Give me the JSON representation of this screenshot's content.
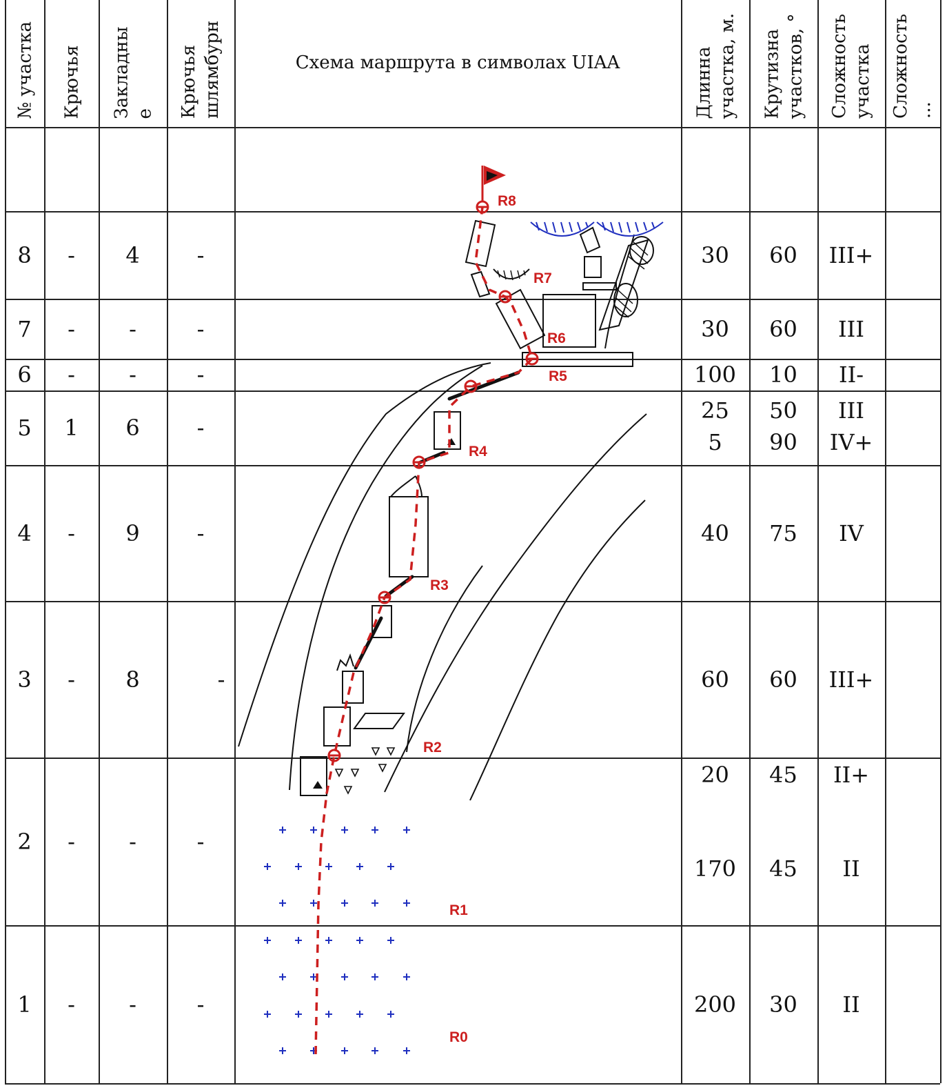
{
  "headers": {
    "section_no": "№ участка",
    "pitons": "Крючья",
    "nuts": [
      "Закладны",
      "е"
    ],
    "bolts": [
      "Крючья",
      "шлямбурн"
    ],
    "scheme": "Схема маршрута в символах UIAA",
    "length": [
      "Длинна",
      "участка, м."
    ],
    "steepness": [
      "Крутизна",
      "участков, °"
    ],
    "difficulty": [
      "Сложность",
      "участка"
    ],
    "difficulty2": [
      "Сложность",
      "..."
    ]
  },
  "rows": [
    {
      "no": "",
      "pitons": "",
      "nuts": "",
      "bolts": "",
      "length": [],
      "steep": [],
      "diff": []
    },
    {
      "no": "8",
      "pitons": "-",
      "nuts": "4",
      "bolts": "-",
      "length": [
        "30"
      ],
      "steep": [
        "60"
      ],
      "diff": [
        "III+"
      ]
    },
    {
      "no": "7",
      "pitons": "-",
      "nuts": "-",
      "bolts": "-",
      "length": [
        "30"
      ],
      "steep": [
        "60"
      ],
      "diff": [
        "III"
      ]
    },
    {
      "no": "6",
      "pitons": "-",
      "nuts": "-",
      "bolts": "-",
      "length": [
        "100"
      ],
      "steep": [
        "10"
      ],
      "diff": [
        "II-"
      ]
    },
    {
      "no": "5",
      "pitons": "1",
      "nuts": "6",
      "bolts": "-",
      "length": [
        "25",
        "5"
      ],
      "steep": [
        "50",
        "90"
      ],
      "diff": [
        "III",
        "IV+"
      ]
    },
    {
      "no": "4",
      "pitons": "-",
      "nuts": "9",
      "bolts": "-",
      "length": [
        "40"
      ],
      "steep": [
        "75"
      ],
      "diff": [
        "IV"
      ]
    },
    {
      "no": "3",
      "pitons": "-",
      "nuts": "8",
      "bolts": "-",
      "length": [
        "60"
      ],
      "steep": [
        "60"
      ],
      "diff": [
        "III+"
      ]
    },
    {
      "no": "2",
      "pitons": "-",
      "nuts": "-",
      "bolts": "-",
      "length": [
        "20",
        "170"
      ],
      "steep": [
        "45",
        "45"
      ],
      "diff": [
        "II+",
        "II"
      ]
    },
    {
      "no": "1",
      "pitons": "-",
      "nuts": "-",
      "bolts": "-",
      "length": [
        "200"
      ],
      "steep": [
        "30"
      ],
      "diff": [
        "II"
      ]
    }
  ],
  "route_points": [
    "R0",
    "R1",
    "R2",
    "R3",
    "R4",
    "R5",
    "R6",
    "R7",
    "R8"
  ],
  "colors": {
    "route": "#cc1f1f",
    "snow": "#1f2fbf",
    "scree": "#1f2fbf",
    "grid": "#222222"
  },
  "icons": [
    "summit-flag-icon",
    "snow-cornice-icon",
    "scree-plus-icon",
    "rubble-triangle-icon"
  ]
}
